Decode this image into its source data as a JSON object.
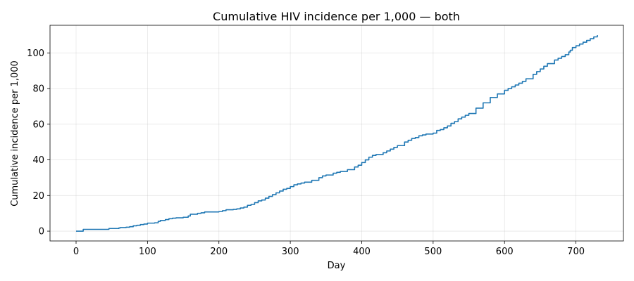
{
  "chart_data": {
    "type": "line",
    "title": "Cumulative HIV incidence per 1,000 — both",
    "xlabel": "Day",
    "ylabel": "Cumulative incidence per 1,000",
    "xlim": [
      -36.5,
      766.5
    ],
    "ylim": [
      -5.5,
      115.5
    ],
    "xticks": [
      0,
      100,
      200,
      300,
      400,
      500,
      600,
      700
    ],
    "yticks": [
      0,
      20,
      40,
      60,
      80,
      100
    ],
    "grid": true,
    "color": "#1f77b4",
    "series": [
      {
        "x": [
          0,
          8,
          10,
          20,
          30,
          45,
          46,
          55,
          60,
          62,
          70,
          75,
          80,
          85,
          90,
          95,
          100,
          110,
          115,
          118,
          125,
          130,
          135,
          140,
          150,
          157,
          160,
          170,
          175,
          180,
          190,
          200,
          205,
          210,
          220,
          225,
          230,
          235,
          240,
          245,
          250,
          255,
          260,
          265,
          270,
          275,
          280,
          285,
          290,
          295,
          300,
          305,
          310,
          315,
          320,
          330,
          340,
          345,
          350,
          360,
          365,
          370,
          380,
          390,
          395,
          400,
          405,
          410,
          415,
          420,
          430,
          435,
          440,
          445,
          450,
          460,
          465,
          470,
          475,
          480,
          485,
          490,
          495,
          500,
          505,
          510,
          515,
          520,
          525,
          530,
          535,
          540,
          545,
          550,
          560,
          570,
          580,
          590,
          600,
          605,
          610,
          615,
          620,
          625,
          630,
          640,
          645,
          650,
          655,
          660,
          670,
          675,
          680,
          685,
          690,
          692,
          695,
          700,
          705,
          710,
          715,
          720,
          725,
          730
        ],
        "y": [
          0,
          0,
          1,
          1,
          1,
          1,
          1.5,
          1.5,
          1.8,
          2,
          2.2,
          2.5,
          3,
          3.3,
          3.7,
          4,
          4.5,
          4.7,
          5.5,
          6,
          6.5,
          7,
          7.3,
          7.5,
          7.8,
          8.5,
          9.5,
          10,
          10.3,
          10.8,
          10.8,
          11,
          11.5,
          12,
          12.2,
          12.5,
          13,
          13.5,
          14.5,
          15,
          16,
          17,
          17.5,
          18.5,
          19.5,
          20.5,
          21.5,
          22.5,
          23.5,
          24,
          25,
          26,
          26.5,
          27,
          27.5,
          28.5,
          30,
          31,
          31.5,
          32.5,
          33,
          33.5,
          34.5,
          36,
          37,
          38.5,
          40,
          41.5,
          42.5,
          43,
          44,
          45,
          46,
          47,
          48,
          50,
          51,
          52,
          52.5,
          53.5,
          54,
          54.5,
          54.5,
          55,
          56.5,
          57,
          58,
          59,
          60.5,
          61.5,
          63,
          64,
          65,
          66,
          69,
          72,
          75,
          77,
          79,
          80,
          81,
          82,
          83,
          84,
          85.5,
          88,
          89.5,
          91,
          92.5,
          94,
          96,
          97,
          98,
          99,
          100.5,
          101.5,
          103,
          104,
          105,
          106,
          107,
          108,
          109,
          110
        ]
      }
    ]
  }
}
